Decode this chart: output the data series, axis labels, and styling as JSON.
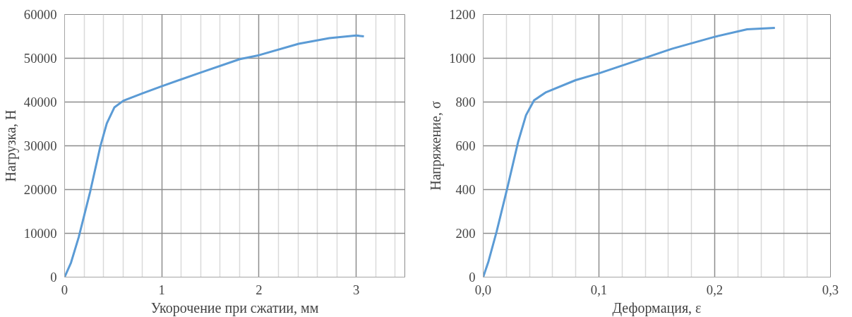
{
  "chart_data": [
    {
      "type": "line",
      "xlabel": "Укорочение при сжатии, мм",
      "ylabel": "Нагрузка, Н",
      "grid": true,
      "xlim": [
        0,
        3.5
      ],
      "ylim": [
        0,
        60000
      ],
      "xticks": [
        0,
        {
          "value": 0.2,
          "label": null
        },
        {
          "value": 0.4,
          "label": null
        },
        {
          "value": 0.6,
          "label": null
        },
        {
          "value": 0.8,
          "label": null
        },
        1,
        {
          "value": 1.2,
          "label": null
        },
        {
          "value": 1.4,
          "label": null
        },
        {
          "value": 1.6,
          "label": null
        },
        {
          "value": 1.8,
          "label": null
        },
        2,
        {
          "value": 2.2,
          "label": null
        },
        {
          "value": 2.4,
          "label": null
        },
        {
          "value": 2.6,
          "label": null
        },
        {
          "value": 2.8,
          "label": null
        },
        3,
        {
          "value": 3.2,
          "label": null
        },
        {
          "value": 3.4,
          "label": null
        }
      ],
      "yticks": [
        0,
        10000,
        20000,
        30000,
        40000,
        50000,
        60000
      ],
      "series": [
        {
          "color": "#5b9bd5",
          "x": [
            0,
            0.066,
            0.145,
            0.263,
            0.368,
            0.434,
            0.513,
            0.605,
            0.803,
            1.0,
            1.382,
            1.803,
            2.0,
            2.408,
            2.724,
            3.0,
            3.079
          ],
          "values": [
            0,
            3300,
            9100,
            19500,
            29900,
            35100,
            38800,
            40300,
            42000,
            43600,
            46600,
            49800,
            50700,
            53300,
            54600,
            55200,
            55000
          ]
        }
      ]
    },
    {
      "type": "line",
      "xlabel": "Деформация, ε",
      "ylabel": "Напряжение, σ",
      "grid": true,
      "xlim": [
        0,
        0.3
      ],
      "ylim": [
        0,
        1200
      ],
      "xticks": [
        {
          "value": 0,
          "label": "0,0"
        },
        {
          "value": 0.02,
          "label": null
        },
        {
          "value": 0.04,
          "label": null
        },
        {
          "value": 0.06,
          "label": null
        },
        {
          "value": 0.08,
          "label": null
        },
        {
          "value": 0.1,
          "label": "0,1"
        },
        {
          "value": 0.12,
          "label": null
        },
        {
          "value": 0.14,
          "label": null
        },
        {
          "value": 0.16,
          "label": null
        },
        {
          "value": 0.18,
          "label": null
        },
        {
          "value": 0.2,
          "label": "0,2"
        },
        {
          "value": 0.22,
          "label": null
        },
        {
          "value": 0.24,
          "label": null
        },
        {
          "value": 0.26,
          "label": null
        },
        {
          "value": 0.28,
          "label": null
        },
        {
          "value": 0.3,
          "label": "0,3"
        }
      ],
      "yticks": [
        0,
        200,
        400,
        600,
        800,
        1000,
        1200
      ],
      "series": [
        {
          "color": "#5b9bd5",
          "x": [
            0,
            0.0046,
            0.0116,
            0.0208,
            0.0301,
            0.037,
            0.044,
            0.0544,
            0.0799,
            0.1,
            0.14,
            0.163,
            0.2,
            0.228,
            0.252
          ],
          "values": [
            0,
            72,
            208,
            406,
            616,
            740,
            808,
            845,
            900,
            931,
            1002,
            1043,
            1098,
            1132,
            1139
          ]
        }
      ]
    }
  ]
}
